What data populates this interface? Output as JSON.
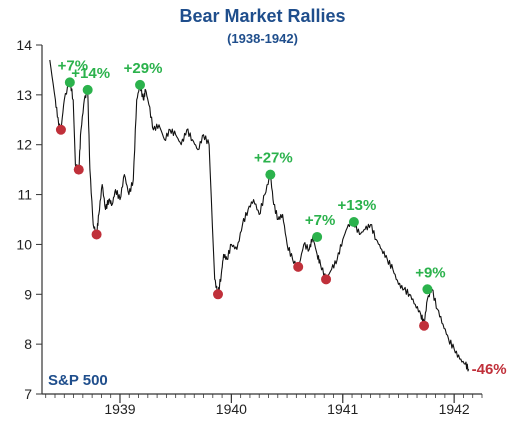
{
  "chart_data": {
    "type": "line",
    "title": "Bear Market Rallies",
    "subtitle": "(1938-1942)",
    "series_label": "S&P 500",
    "total_change_label": "-46%",
    "ylim": [
      7,
      14
    ],
    "xlim": [
      1938.3,
      1942.25
    ],
    "y_ticks": [
      7,
      8,
      9,
      10,
      11,
      12,
      13,
      14
    ],
    "y_tick_labels": [
      "7",
      "8",
      "9",
      "10",
      "11",
      "12",
      "13",
      "14"
    ],
    "x_ticks": [
      1939,
      1940,
      1941,
      1942
    ],
    "x_tick_labels": [
      "1939",
      "1940",
      "1941",
      "1942"
    ],
    "colors": {
      "title": "#1f4e8c",
      "line": "#111111",
      "rally": "#2bb24c",
      "trough": "#c0303a",
      "axis": "#333333"
    },
    "x": [
      1938.37,
      1938.42,
      1938.45,
      1938.47,
      1938.5,
      1938.55,
      1938.58,
      1938.6,
      1938.63,
      1938.65,
      1938.68,
      1938.71,
      1938.73,
      1938.76,
      1938.79,
      1938.81,
      1938.84,
      1938.87,
      1938.9,
      1938.93,
      1938.96,
      1939.0,
      1939.04,
      1939.08,
      1939.12,
      1939.15,
      1939.18,
      1939.21,
      1939.23,
      1939.26,
      1939.3,
      1939.35,
      1939.4,
      1939.45,
      1939.5,
      1939.55,
      1939.6,
      1939.65,
      1939.7,
      1939.75,
      1939.8,
      1939.85,
      1939.88,
      1939.91,
      1939.93,
      1939.96,
      1940.0,
      1940.05,
      1940.1,
      1940.15,
      1940.2,
      1940.25,
      1940.3,
      1940.35,
      1940.38,
      1940.42,
      1940.46,
      1940.5,
      1940.55,
      1940.6,
      1940.65,
      1940.7,
      1940.73,
      1940.77,
      1940.8,
      1940.85,
      1940.9,
      1940.95,
      1941.0,
      1941.05,
      1941.1,
      1941.15,
      1941.2,
      1941.25,
      1941.3,
      1941.35,
      1941.4,
      1941.45,
      1941.5,
      1941.55,
      1941.6,
      1941.65,
      1941.7,
      1941.73,
      1941.76,
      1941.8,
      1941.85,
      1941.9,
      1941.95,
      1942.0,
      1942.05,
      1942.1,
      1942.13
    ],
    "y": [
      13.7,
      12.9,
      12.4,
      12.3,
      12.9,
      13.3,
      12.9,
      11.6,
      11.5,
      12.3,
      12.9,
      13.1,
      11.5,
      10.4,
      10.2,
      10.6,
      11.2,
      10.7,
      10.9,
      10.8,
      11.1,
      10.9,
      11.4,
      11.0,
      11.3,
      12.9,
      13.2,
      12.9,
      13.1,
      12.8,
      12.3,
      12.4,
      12.1,
      12.3,
      12.2,
      12.0,
      12.3,
      12.1,
      11.9,
      12.2,
      12.0,
      9.3,
      9.0,
      9.4,
      9.8,
      9.7,
      10.0,
      9.9,
      10.4,
      10.7,
      10.9,
      10.6,
      11.0,
      11.4,
      10.8,
      10.5,
      10.6,
      10.0,
      9.7,
      9.5,
      10.0,
      9.9,
      10.15,
      9.8,
      9.6,
      9.3,
      9.5,
      9.7,
      10.1,
      10.4,
      10.45,
      10.2,
      10.3,
      10.4,
      10.1,
      9.9,
      9.7,
      9.5,
      9.2,
      9.1,
      9.0,
      8.8,
      8.6,
      8.4,
      8.9,
      9.1,
      8.7,
      8.4,
      8.1,
      7.9,
      7.7,
      7.6,
      7.5
    ],
    "troughs": [
      {
        "x": 1938.47,
        "y": 12.3
      },
      {
        "x": 1938.63,
        "y": 11.5
      },
      {
        "x": 1938.79,
        "y": 10.2
      },
      {
        "x": 1939.88,
        "y": 9.0
      },
      {
        "x": 1940.6,
        "y": 9.55
      },
      {
        "x": 1940.85,
        "y": 9.3
      },
      {
        "x": 1941.73,
        "y": 8.37
      }
    ],
    "peaks": [
      {
        "x": 1938.55,
        "y": 13.25,
        "label": "+7%"
      },
      {
        "x": 1938.71,
        "y": 13.1,
        "label": "+14%"
      },
      {
        "x": 1939.18,
        "y": 13.2,
        "label": "+29%"
      },
      {
        "x": 1940.35,
        "y": 11.4,
        "label": "+27%"
      },
      {
        "x": 1940.77,
        "y": 10.15,
        "label": "+7%"
      },
      {
        "x": 1941.1,
        "y": 10.45,
        "label": "+13%"
      },
      {
        "x": 1941.76,
        "y": 9.1,
        "label": "+9%"
      }
    ]
  }
}
